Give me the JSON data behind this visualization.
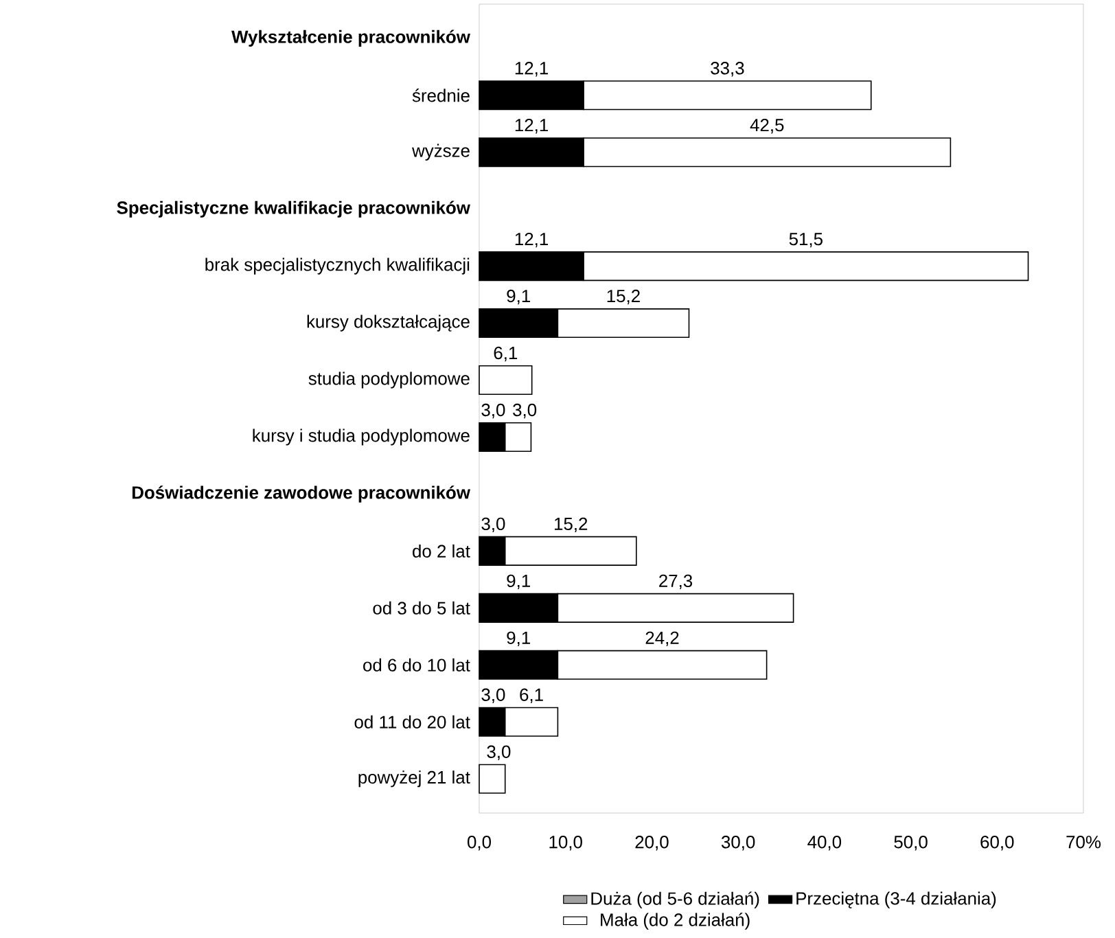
{
  "chart_data": {
    "type": "bar",
    "orientation": "horizontal",
    "stacked": true,
    "categories": [
      "Wykształcenie pracowników",
      "średnie",
      "wyższe",
      "Specjalistyczne kwalifikacje pracowników",
      "brak specjalistycznych kwalifikacji",
      "kursy dokształcające",
      "studia podyplomowe",
      "kursy i studia podyplomowe",
      "Doświadczenie zawodowe pracowników",
      "do 2 lat",
      "od 3 do 5 lat",
      "od 6 do 10 lat",
      "od 11 do 20 lat",
      "powyżej 21 lat"
    ],
    "series": [
      {
        "name": "Duża (od 5-6 działań)",
        "color": "#a0a0a0",
        "values": [
          null,
          null,
          null,
          null,
          null,
          null,
          null,
          null,
          null,
          null,
          null,
          null,
          null,
          null
        ]
      },
      {
        "name": "Przeciętna (3-4 działania)",
        "color": "#000000",
        "values": [
          null,
          12.1,
          12.1,
          null,
          12.1,
          9.1,
          null,
          3.0,
          null,
          3.0,
          9.1,
          9.1,
          3.0,
          null
        ],
        "value_labels": [
          null,
          "12,1",
          "12,1",
          null,
          "12,1",
          "9,1",
          null,
          "3,0",
          null,
          "3,0",
          "9,1",
          "9,1",
          "3,0",
          null
        ]
      },
      {
        "name": "Mała (do 2 działań)",
        "color": "#ffffff",
        "values": [
          null,
          33.3,
          42.5,
          null,
          51.5,
          15.2,
          6.1,
          3.0,
          null,
          15.2,
          27.3,
          24.2,
          6.1,
          3.0
        ],
        "value_labels": [
          null,
          "33,3",
          "42,5",
          null,
          "51,5",
          "15,2",
          "6,1",
          "3,0",
          null,
          "15,2",
          "27,3",
          "24,2",
          "6,1",
          "3,0"
        ]
      }
    ],
    "xlim": [
      0,
      70
    ],
    "xticks": [
      {
        "value": 0,
        "label": "0,0"
      },
      {
        "value": 10,
        "label": "10,0"
      },
      {
        "value": 20,
        "label": "20,0"
      },
      {
        "value": 30,
        "label": "30,0"
      },
      {
        "value": 40,
        "label": "40,0"
      },
      {
        "value": 50,
        "label": "50,0"
      },
      {
        "value": 60,
        "label": "60,0"
      },
      {
        "value": 70,
        "label": "70%"
      }
    ],
    "legend": "bottom",
    "grid": false
  }
}
